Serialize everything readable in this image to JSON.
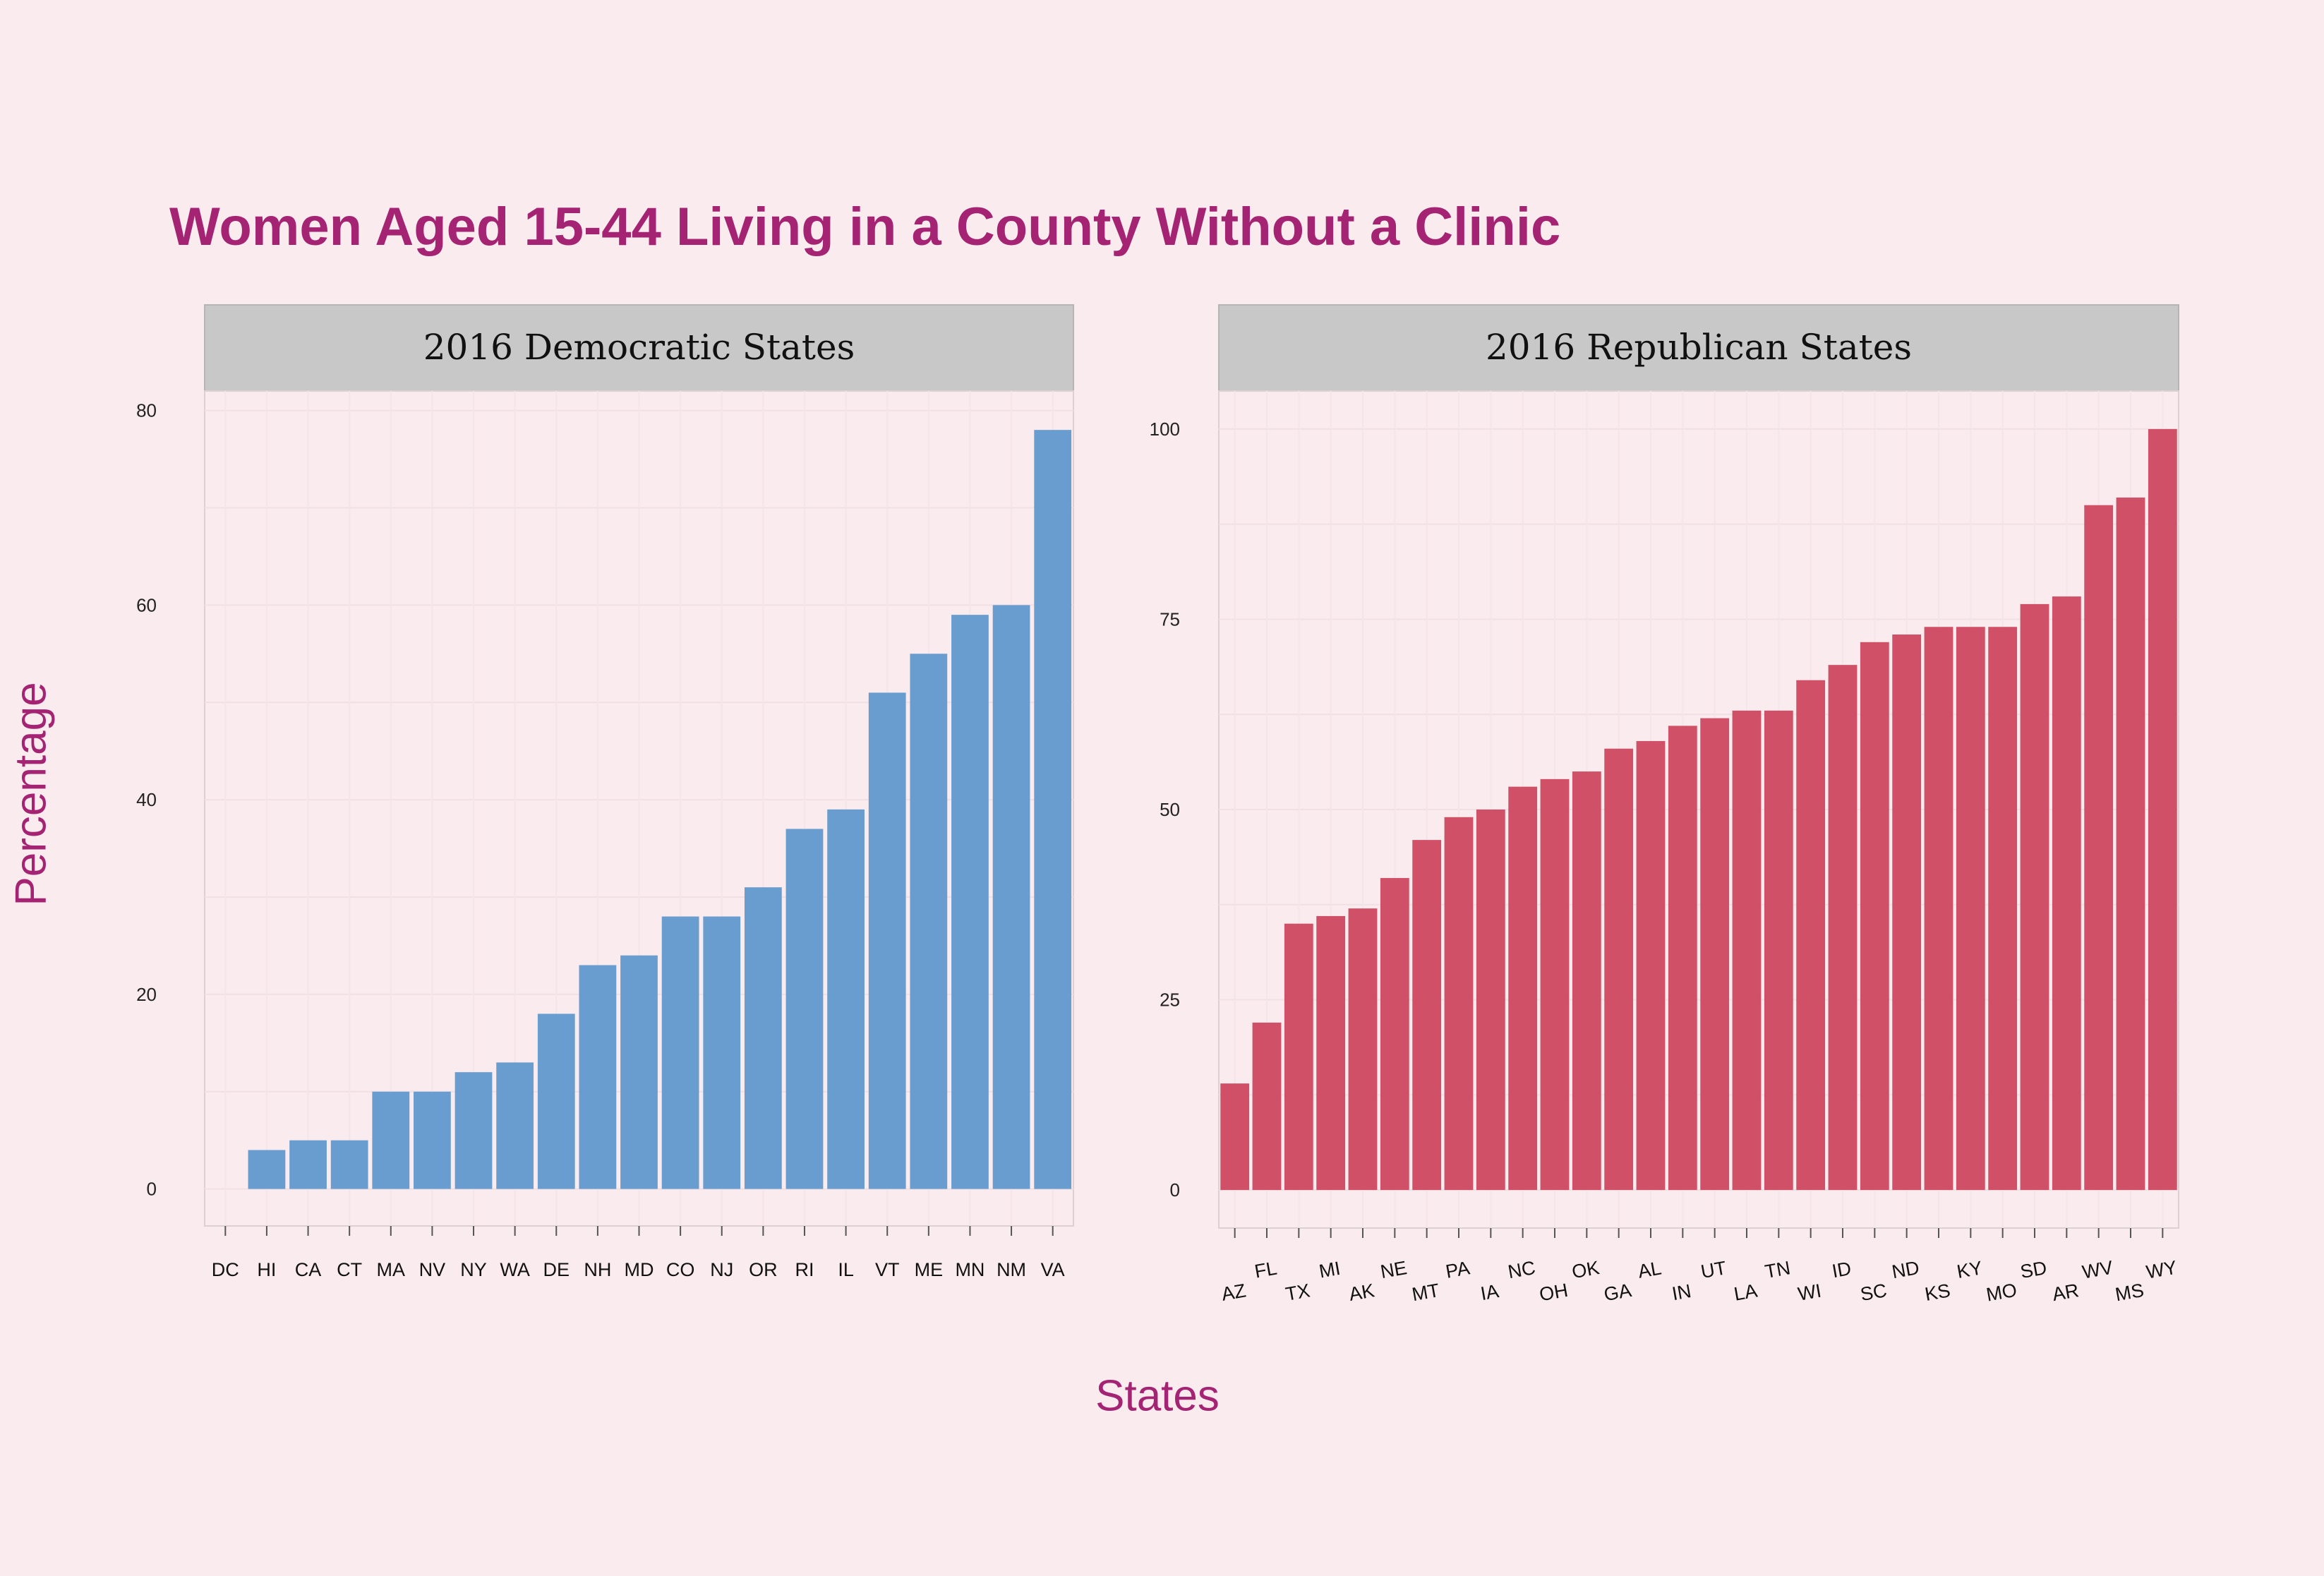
{
  "title": "Women Aged 15-44 Living in a County Without a Clinic",
  "ylabel": "Percentage",
  "xlabel": "States",
  "colors": {
    "background": "#faebee",
    "title": "#a52373",
    "democratic_bar": "#6a9dcf",
    "republican_bar": "#d05167",
    "strip": "#c8c8c8"
  },
  "chart_data": [
    {
      "type": "bar",
      "title": "2016 Democratic States",
      "categories": [
        "DC",
        "HI",
        "CA",
        "CT",
        "MA",
        "NV",
        "NY",
        "WA",
        "DE",
        "NH",
        "MD",
        "CO",
        "NJ",
        "OR",
        "RI",
        "IL",
        "VT",
        "ME",
        "MN",
        "NM",
        "VA"
      ],
      "values": [
        0,
        4,
        5,
        5,
        10,
        10,
        12,
        13,
        18,
        23,
        24,
        28,
        28,
        31,
        37,
        39,
        51,
        55,
        59,
        60,
        78
      ],
      "yticks": [
        "0",
        "20",
        "40",
        "60",
        "80"
      ],
      "ylim": [
        -3.8,
        82
      ],
      "grid": true
    },
    {
      "type": "bar",
      "title": "2016 Republican States",
      "categories": [
        "AZ",
        "FL",
        "TX",
        "MI",
        "AK",
        "NE",
        "MT",
        "PA",
        "IA",
        "NC",
        "OH",
        "OK",
        "GA",
        "AL",
        "IN",
        "UT",
        "LA",
        "TN",
        "WI",
        "ID",
        "SC",
        "ND",
        "KS",
        "KY",
        "MO",
        "SD",
        "AR",
        "WV",
        "MS",
        "WY"
      ],
      "values": [
        14,
        22,
        35,
        36,
        37,
        41,
        46,
        49,
        50,
        53,
        54,
        55,
        58,
        59,
        61,
        62,
        63,
        63,
        67,
        69,
        72,
        73,
        74,
        74,
        74,
        77,
        78,
        90,
        91,
        100
      ],
      "yticks": [
        "0",
        "25",
        "50",
        "75",
        "100"
      ],
      "ylim": [
        -5,
        105
      ],
      "grid": true
    }
  ]
}
